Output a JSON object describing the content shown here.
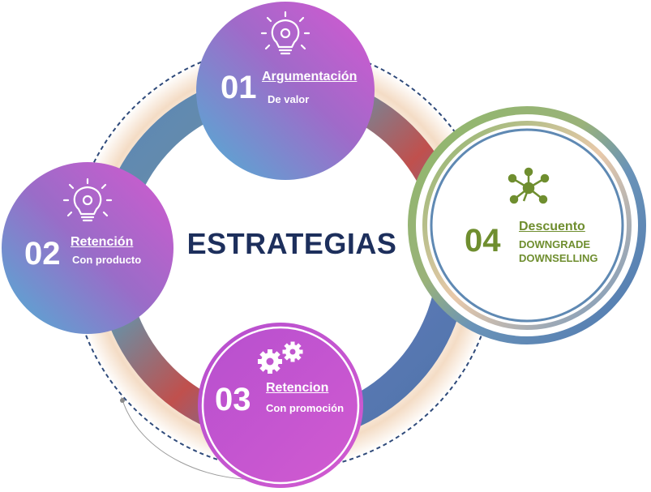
{
  "title": "ESTRATEGIAS",
  "nodes": [
    {
      "number": "01",
      "title": "Argumentación",
      "subtitle": "De valor",
      "icon": "lightbulb-gear-icon"
    },
    {
      "number": "02",
      "title": "Retención",
      "subtitle": "Con producto",
      "icon": "lightbulb-gear-icon"
    },
    {
      "number": "03",
      "title": "Retencion",
      "subtitle": "Con promoción",
      "icon": "gears-icon"
    },
    {
      "number": "04",
      "title": "Descuento",
      "subtitle": "DOWNGRADE",
      "subtitle2": "DOWNSELLING",
      "icon": "network-icon"
    }
  ],
  "colors": {
    "title": "#1d2f5c",
    "node_gradient_start": "#5aa7d3",
    "node_gradient_end": "#d057cf",
    "accent_green": "#6f8e2f",
    "ring_blue": "#5a78b5",
    "ring_red": "#c0504d"
  }
}
